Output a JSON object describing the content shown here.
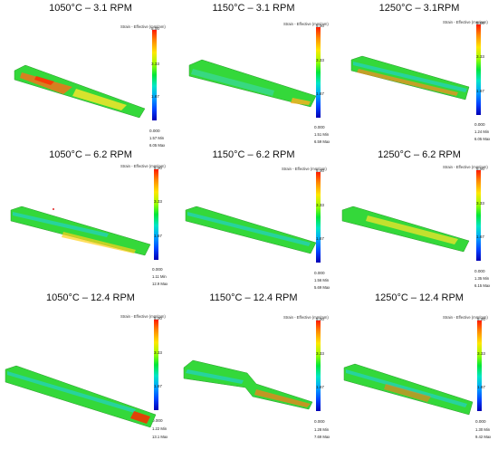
{
  "colorbar": {
    "title": "Strain - Effective (mm/mm)",
    "ticks": [
      "5.00",
      "3.33",
      "1.67",
      "0.000"
    ],
    "min_label": "Min",
    "max_label": "Max"
  },
  "panels": [
    {
      "title": "1050°C – 3.1 RPM",
      "min": "1.57",
      "max": "6.05"
    },
    {
      "title": "1150°C – 3.1 RPM",
      "min": "1.51",
      "max": "6.59"
    },
    {
      "title": "1250°C – 3.1RPM",
      "min": "1.24",
      "max": "6.05"
    },
    {
      "title": "1050°C – 6.2 RPM",
      "min": "1.11",
      "max": "12.9"
    },
    {
      "title": "1150°C – 6.2 RPM",
      "min": "1.56",
      "max": "5.69"
    },
    {
      "title": "1250°C – 6.2 RPM",
      "min": "1.35",
      "max": "6.15"
    },
    {
      "title": "1050°C – 12.4 RPM",
      "min": "1.22",
      "max": "13.1"
    },
    {
      "title": "1150°C – 12.4 RPM",
      "min": "1.28",
      "max": "7.69"
    },
    {
      "title": "1250°C – 12.4 RPM",
      "min": "1.30",
      "max": "9.42"
    }
  ],
  "colors": {
    "high": "#ff2a00",
    "mid_high": "#ffe600",
    "mid": "#20e020",
    "low": "#20d8d0"
  }
}
